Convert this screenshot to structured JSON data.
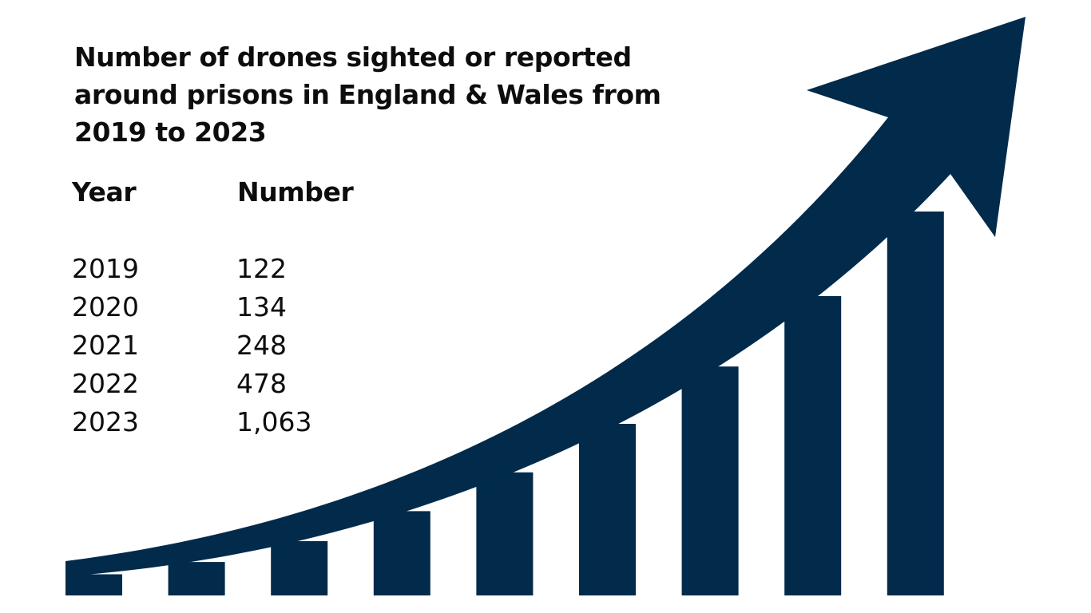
{
  "title": "Number of drones sighted or reported around prisons in England & Wales from 2019 to 2023",
  "colors": {
    "bars": "#012a4b",
    "arrow": "#012a4b",
    "text": "#0d0d0d",
    "background": "#ffffff"
  },
  "chart_data": {
    "type": "table",
    "title": "Number of drones sighted or reported around prisons in England & Wales from 2019 to 2023",
    "columns": [
      "Year",
      "Number"
    ],
    "rows": [
      {
        "year": "2019",
        "number": "122"
      },
      {
        "year": "2020",
        "number": "134"
      },
      {
        "year": "2021",
        "number": "248"
      },
      {
        "year": "2022",
        "number": "478"
      },
      {
        "year": "2023",
        "number": "1,063"
      }
    ],
    "decoration": {
      "type": "bar",
      "bar_count": 9,
      "relative_heights": [
        0.055,
        0.087,
        0.141,
        0.219,
        0.32,
        0.446,
        0.595,
        0.778,
        0.998
      ],
      "trend_arrow": "up-right"
    }
  }
}
